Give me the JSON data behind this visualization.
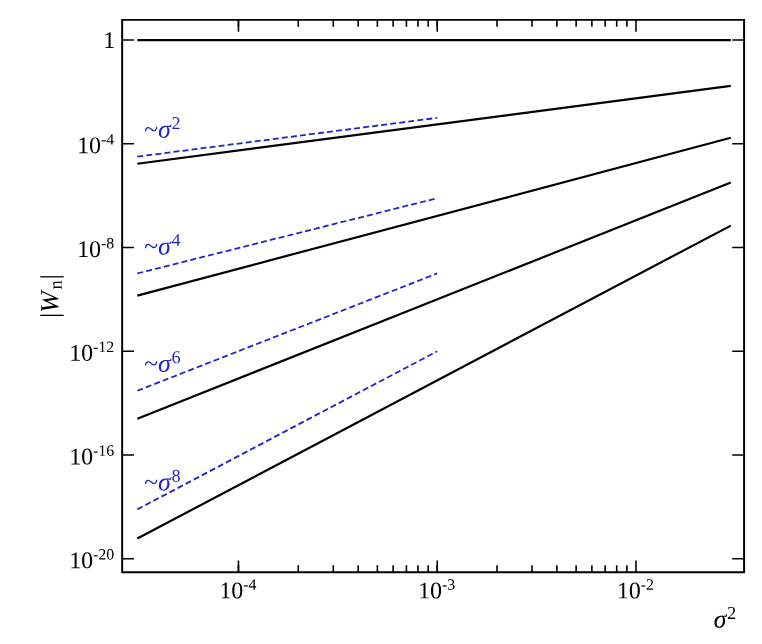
{
  "chart_data": {
    "type": "line",
    "xlabel": "*σ*$^{2}$",
    "ylabel": "|*W*$_{n}$|",
    "log": "xy",
    "grid": false,
    "marker": "none",
    "xlim": [
      2.6e-05,
      0.035
    ],
    "ylim": [
      3e-21,
      6
    ],
    "xticks": [
      {
        "value": 0.0001,
        "label": "10$^{-4}$"
      },
      {
        "value": 0.001,
        "label": "10$^{-3}$"
      },
      {
        "value": 0.01,
        "label": "10$^{-2}$"
      }
    ],
    "yticks": [
      {
        "value": 1,
        "label": "1"
      },
      {
        "value": 0.0001,
        "label": "10$^{-4}$"
      },
      {
        "value": 1e-08,
        "label": "10$^{-8}$"
      },
      {
        "value": 1e-12,
        "label": "10$^{-12}$"
      },
      {
        "value": 1e-16,
        "label": "10$^{-16}$"
      },
      {
        "value": 1e-20,
        "label": "10$^{-20}$"
      }
    ],
    "series": [
      {
        "color": "#000000",
        "line_style": "solid",
        "x": [
          3.1e-05,
          0.03
        ],
        "values": [
          1,
          1
        ]
      },
      {
        "color": "#000000",
        "line_style": "solid",
        "x": [
          3.1e-05,
          0.03
        ],
        "values": [
          1.7e-05,
          0.017
        ]
      },
      {
        "color": "#000000",
        "line_style": "solid",
        "x": [
          3.1e-05,
          0.03
        ],
        "values": [
          1.4e-10,
          0.00017
        ]
      },
      {
        "color": "#000000",
        "line_style": "solid",
        "x": [
          3.1e-05,
          0.03
        ],
        "values": [
          2.5e-15,
          3.2e-06
        ]
      },
      {
        "color": "#000000",
        "line_style": "solid",
        "x": [
          3.1e-05,
          0.03
        ],
        "values": [
          6e-20,
          7e-08
        ]
      },
      {
        "name": "~*σ*$^{2}$",
        "color": "#2222cc",
        "line_style": "dashed",
        "x": [
          3.1e-05,
          0.001
        ],
        "values": [
          3.2e-05,
          0.001
        ]
      },
      {
        "name": "~*σ*$^{4}$",
        "color": "#2222cc",
        "line_style": "dashed",
        "x": [
          3.1e-05,
          0.001
        ],
        "values": [
          1e-09,
          8e-07
        ]
      },
      {
        "name": "~*σ*$^{6}$",
        "color": "#2222cc",
        "line_style": "dashed",
        "x": [
          3.1e-05,
          0.001
        ],
        "values": [
          3e-14,
          1e-09
        ]
      },
      {
        "name": "~*σ*$^{8}$",
        "color": "#2222cc",
        "line_style": "dashed",
        "x": [
          3.1e-05,
          0.001
        ],
        "values": [
          8e-19,
          1e-12
        ]
      }
    ]
  }
}
